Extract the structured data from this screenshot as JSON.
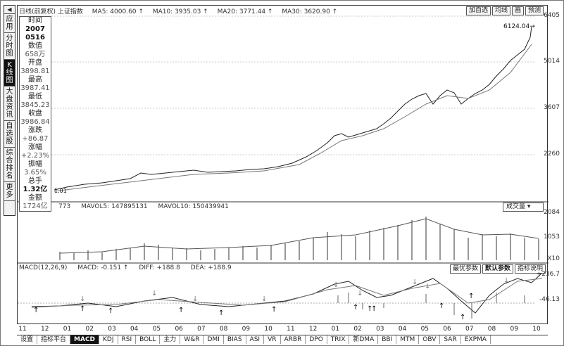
{
  "sidebar": {
    "items": [
      {
        "label": "应用",
        "active": false
      },
      {
        "label": "分时图",
        "active": false
      },
      {
        "label": "K线图",
        "active": true
      },
      {
        "label": "大盘资讯",
        "active": false
      },
      {
        "label": "自选股",
        "active": false
      },
      {
        "label": "综合排名",
        "active": false
      },
      {
        "label": "更多",
        "active": false
      }
    ]
  },
  "header": {
    "index_name": "日线(前复权) 上证指数",
    "ma5": "MA5: 4000.60 ↑",
    "ma10": "MA10: 3935.03 ↑",
    "ma20": "MA20: 3771.44 ↑",
    "ma30": "MA30: 3620.90 ↑"
  },
  "top_buttons": [
    "加自选",
    "均线",
    "画",
    "预测"
  ],
  "info_panel": {
    "time_label": "时间",
    "date_year": "2007",
    "date_md": "0516",
    "value_label": "数值",
    "value": "658万",
    "open_label": "开盘",
    "open": "3898.81",
    "high_label": "最高",
    "high": "3987.41",
    "low_label": "最低",
    "low": "3845.23",
    "close_label": "收盘",
    "close": "3986.84",
    "change_label": "涨跌",
    "change": "+86.87",
    "pct_label": "涨幅",
    "pct": "+2.23%",
    "amp_label": "振幅",
    "amp": "3.65%",
    "vol_label": "总手",
    "vol": "1.32亿",
    "amt_label": "金额",
    "amt": "1724亿"
  },
  "price_axis": [
    "6405",
    "5014",
    "3607",
    "2260"
  ],
  "peak_label": "6124.04→",
  "low_label": "1.01",
  "volume": {
    "partial": "773",
    "mavol5": "MAVOL5: 147895131",
    "mavol10": "MAVOL10: 150439941",
    "select": "成交量 ▾",
    "axis": [
      "2084",
      "1053",
      "X10"
    ]
  },
  "macd": {
    "title": "MACD(12,26,9)",
    "macd_value": "MACD: -0.151 ↑",
    "diff": "DIFF: +188.8",
    "dea": "DEA: +188.9",
    "btn_best": "最优参数",
    "btn_default": "默认参数",
    "btn_help": "指标说明",
    "axis": [
      "+236.7",
      "-46.13"
    ]
  },
  "x_axis": [
    "11",
    "12",
    "01",
    "02",
    "03",
    "04",
    "05",
    "06",
    "07",
    "08",
    "09",
    "10",
    "11",
    "12",
    "01",
    "02",
    "03",
    "04",
    "05",
    "06",
    "07",
    "08",
    "09",
    "10"
  ],
  "bottom_tabs": [
    "设置",
    "指标平台",
    "MACD",
    "KDJ",
    "RSI",
    "BOLL",
    "主力",
    "W&R",
    "DMI",
    "BIAS",
    "ASI",
    "VR",
    "ARBR",
    "DPO",
    "TRIX",
    "新DMA",
    "BBI",
    "MTM",
    "OBV",
    "SAR",
    "EXPMA"
  ],
  "active_tab": "MACD"
}
